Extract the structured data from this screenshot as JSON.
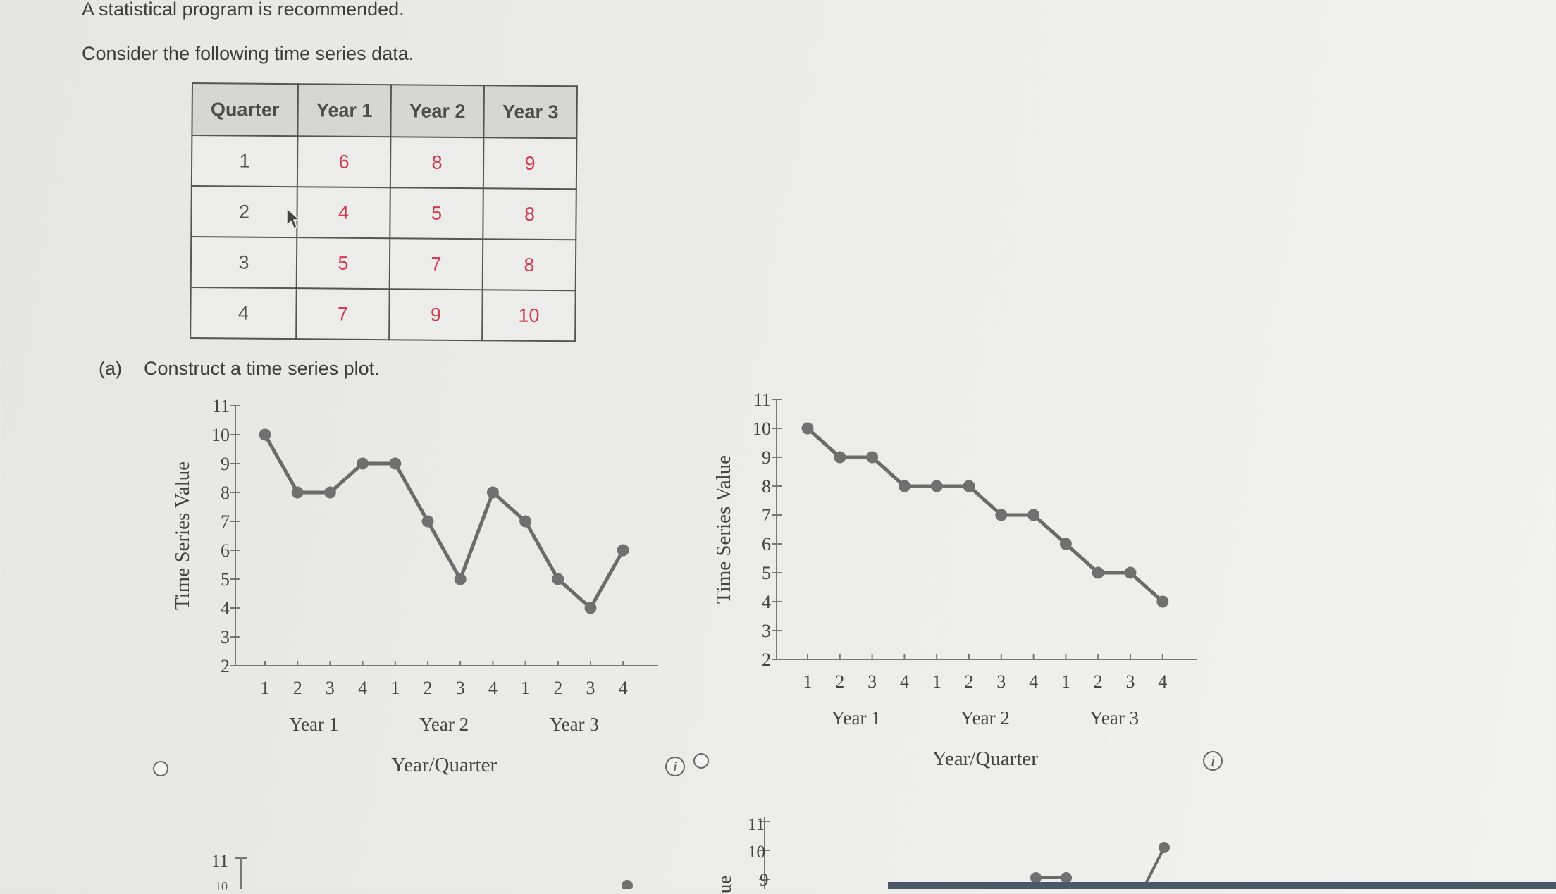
{
  "page": {
    "note_text": "A statistical program is recommended.",
    "intro_text": "Consider the following time series data.",
    "part_a_label": "(a)",
    "part_a_text": "Construct a time series plot."
  },
  "table": {
    "headers": [
      "Quarter",
      "Year 1",
      "Year 2",
      "Year 3"
    ],
    "rows": [
      [
        "1",
        "6",
        "8",
        "9"
      ],
      [
        "2",
        "4",
        "5",
        "8"
      ],
      [
        "3",
        "5",
        "7",
        "8"
      ],
      [
        "4",
        "7",
        "9",
        "10"
      ]
    ],
    "value_color": "#cf3a4e"
  },
  "chart_data": [
    {
      "type": "line",
      "ylabel": "Time Series Value",
      "xlabel": "Year/Quarter",
      "ylim": [
        2,
        11
      ],
      "yticks": [
        2,
        3,
        4,
        5,
        6,
        7,
        8,
        9,
        10,
        11
      ],
      "x_tick_labels": [
        "1",
        "2",
        "3",
        "4",
        "1",
        "2",
        "3",
        "4",
        "1",
        "2",
        "3",
        "4"
      ],
      "year_labels": [
        "Year 1",
        "Year 2",
        "Year 3"
      ],
      "values": [
        10,
        8,
        8,
        9,
        9,
        7,
        5,
        8,
        7,
        5,
        4,
        6
      ]
    },
    {
      "type": "line",
      "ylabel": "Time Series Value",
      "xlabel": "Year/Quarter",
      "ylim": [
        2,
        11
      ],
      "yticks": [
        2,
        3,
        4,
        5,
        6,
        7,
        8,
        9,
        10,
        11
      ],
      "x_tick_labels": [
        "1",
        "2",
        "3",
        "4",
        "1",
        "2",
        "3",
        "4",
        "1",
        "2",
        "3",
        "4"
      ],
      "year_labels": [
        "Year 1",
        "Year 2",
        "Year 3"
      ],
      "values": [
        10,
        9,
        9,
        8,
        8,
        8,
        7,
        7,
        6,
        5,
        5,
        4
      ]
    }
  ],
  "partial": {
    "left_tick": "11",
    "left_tick_cut": "10",
    "right_ticks": [
      "11",
      "10",
      "9"
    ],
    "right_ylabel_fragment": "ue"
  },
  "icons": {
    "info": "i",
    "cursor": "arrow-cursor-icon",
    "radio": "radio-button-icon"
  },
  "colors": {
    "line": "#6b6b6b",
    "marker": "#707070",
    "axis": "#777777"
  }
}
